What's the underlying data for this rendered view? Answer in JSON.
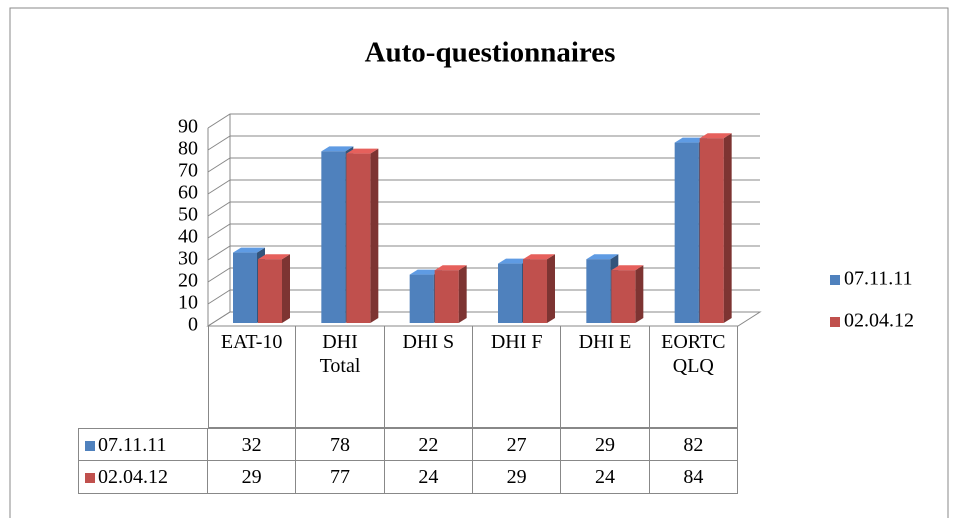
{
  "chart_data": {
    "type": "bar3d",
    "title": "Auto-questionnaires",
    "categories": [
      "EAT-10",
      "DHI Total",
      "DHI S",
      "DHI F",
      "DHI E",
      "EORTC QLQ"
    ],
    "series": [
      {
        "name": "07.11.11",
        "color": "#4f81bd",
        "values": [
          32,
          78,
          22,
          27,
          29,
          82
        ]
      },
      {
        "name": "02.04.12",
        "color": "#c0504d",
        "values": [
          29,
          77,
          24,
          29,
          24,
          84
        ]
      }
    ],
    "ylim": [
      0,
      90
    ],
    "yticks": [
      0,
      10,
      20,
      30,
      40,
      50,
      60,
      70,
      80,
      90
    ],
    "grid": true,
    "legend": "right",
    "data_table": true
  }
}
